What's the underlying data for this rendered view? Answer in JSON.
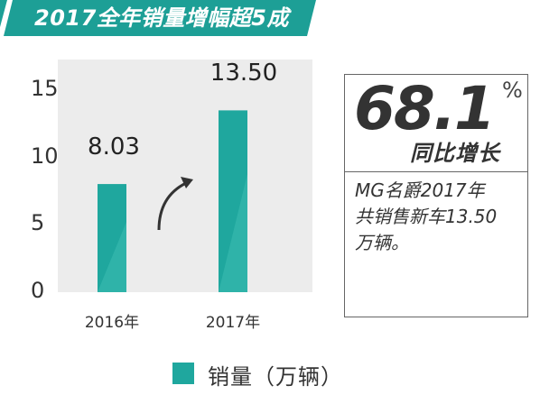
{
  "header": {
    "title": "2017全年销量增幅超5成"
  },
  "chart_data": {
    "type": "bar",
    "categories": [
      "2016年",
      "2017年"
    ],
    "values": [
      8.03,
      13.5
    ],
    "value_labels": [
      "8.03",
      "13.50"
    ],
    "ylim": [
      0,
      15
    ],
    "yticks": [
      "0",
      "5",
      "10",
      "15"
    ],
    "legend": "销量（万辆）",
    "legend_position": "bottom",
    "grid": false
  },
  "info": {
    "percent": "68.1",
    "percent_sign": "%",
    "label": "同比增长",
    "desc_lines": [
      "MG名爵2017年",
      "共销售新车13.50",
      "万辆。"
    ]
  },
  "colors": {
    "bar": "#1fa79e",
    "bar_light": "#3dbdb3",
    "title_bg": "#1d9f96",
    "plot_bg": "#ececec"
  }
}
